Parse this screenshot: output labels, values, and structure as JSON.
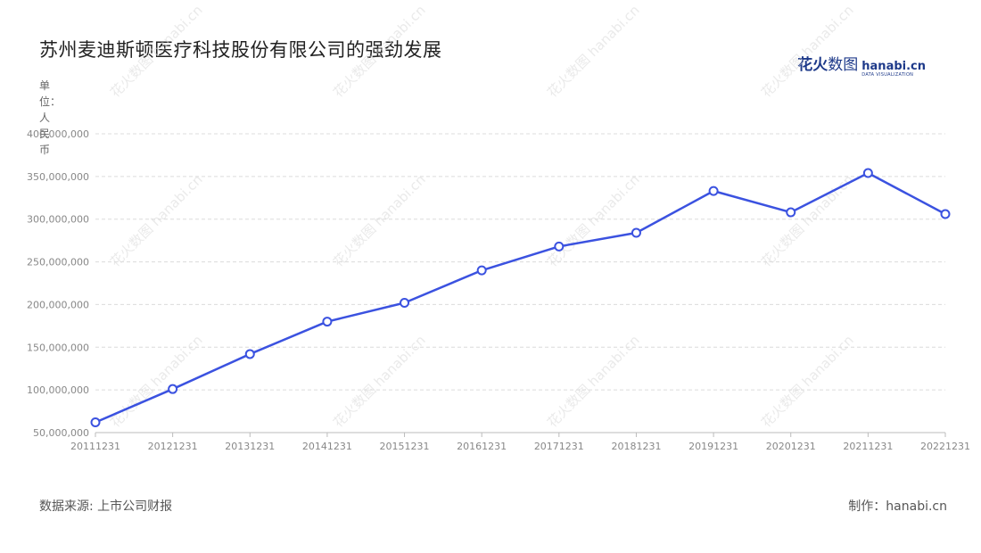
{
  "title": "苏州麦迪斯顿医疗科技股份有限公司的强劲发展",
  "unit_label": "单位：人民币",
  "logo": {
    "cn_bold": "花火",
    "cn_thin": "数图",
    "en": "hanabi.cn",
    "en_sub": "DATA VISUALIZATION"
  },
  "footer": {
    "source": "数据来源: 上市公司财报",
    "credit": "制作：hanabi.cn"
  },
  "colors": {
    "line": "#3b52e0",
    "grid": "#dcdcdc",
    "marker_fill": "#ffffff"
  },
  "chart_data": {
    "type": "line",
    "categories": [
      "20111231",
      "20121231",
      "20131231",
      "20141231",
      "20151231",
      "20161231",
      "20171231",
      "20181231",
      "20191231",
      "20201231",
      "20211231",
      "20221231"
    ],
    "series": [
      {
        "values": [
          62000000,
          101000000,
          142000000,
          180000000,
          202000000,
          240000000,
          268000000,
          284000000,
          333000000,
          308000000,
          354000000,
          306000000
        ]
      }
    ],
    "ylim": [
      50000000,
      400000000
    ],
    "yticks": [
      "50,000,000",
      "100,000,000",
      "150,000,000",
      "200,000,000",
      "250,000,000",
      "300,000,000",
      "350,000,000",
      "400,000,000"
    ],
    "grid": true,
    "legend": "none"
  }
}
